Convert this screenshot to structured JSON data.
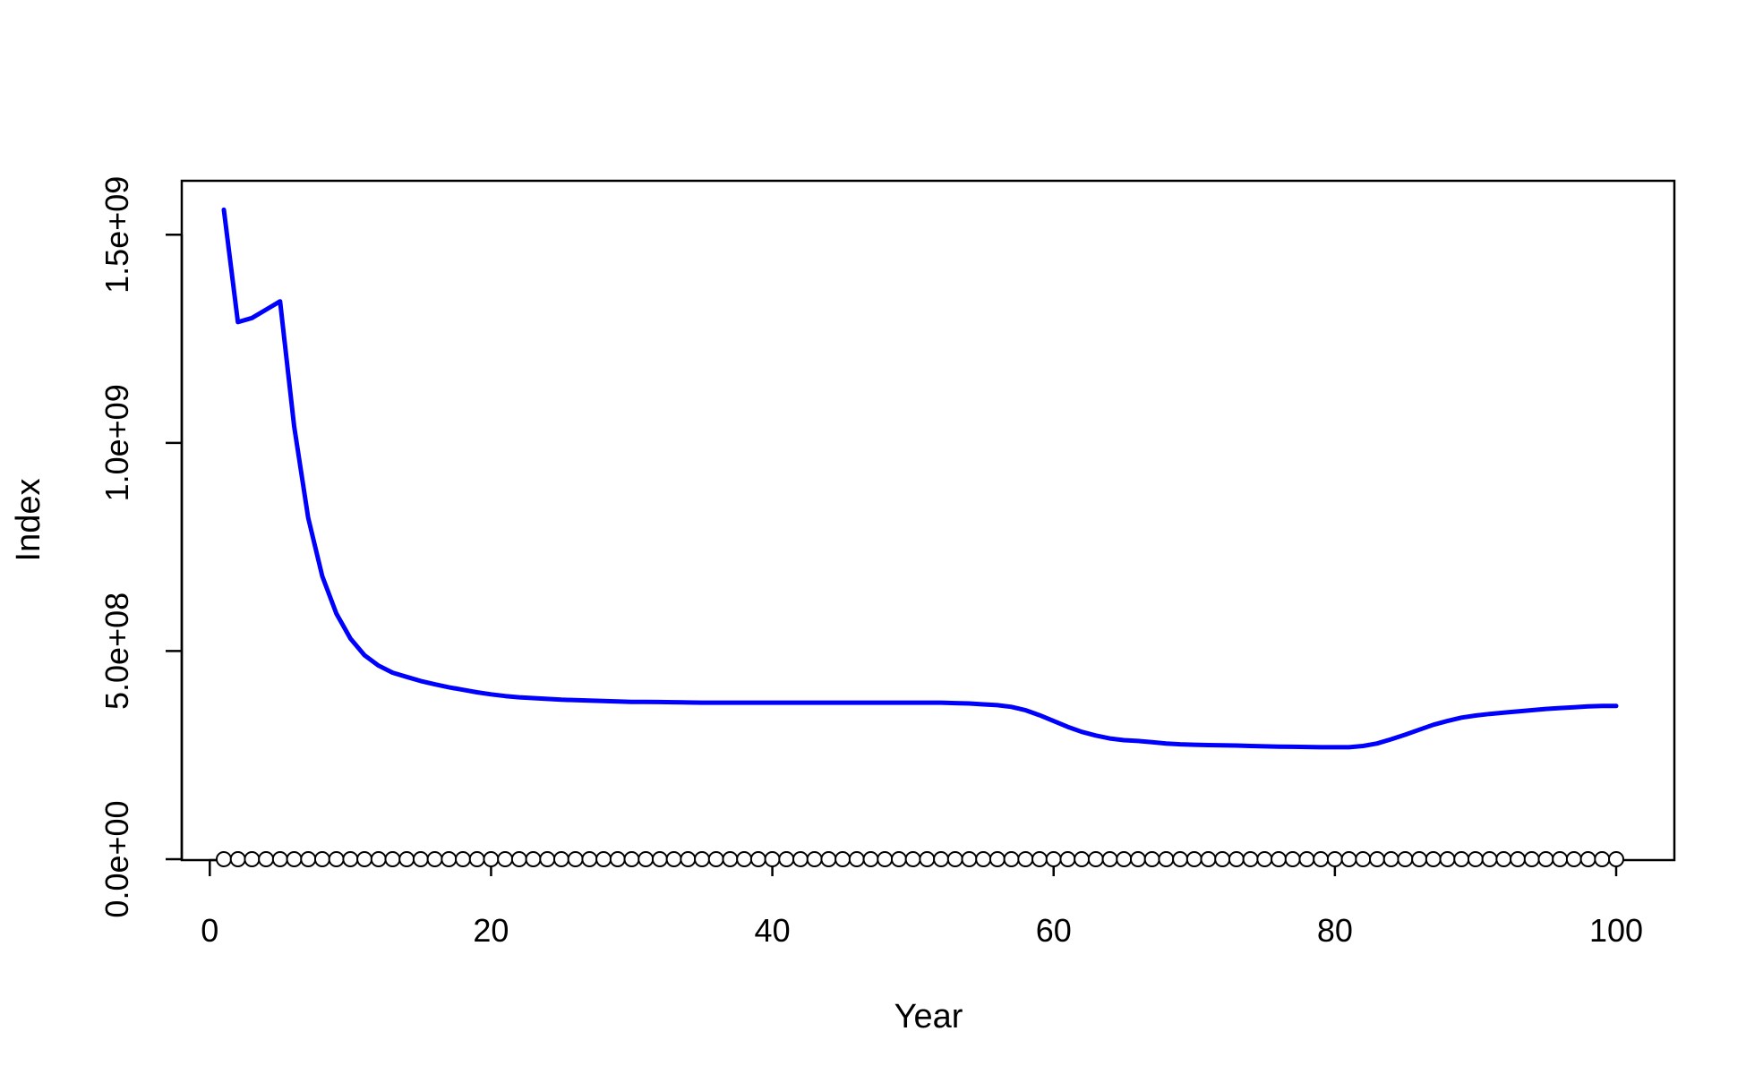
{
  "chart_data": {
    "type": "line",
    "title": "",
    "xlabel": "Year",
    "ylabel": "Index",
    "xlim": [
      1,
      100
    ],
    "ylim": [
      0,
      1550000000
    ],
    "xticks": [
      0,
      20,
      40,
      60,
      80,
      100
    ],
    "xtick_labels": [
      "0",
      "20",
      "40",
      "60",
      "80",
      "100"
    ],
    "yticks": [
      0,
      500000000,
      1000000000,
      1500000000
    ],
    "ytick_labels": [
      "0.0e+00",
      "5.0e+08",
      "1.0e+09",
      "1.5e+09"
    ],
    "grid": false,
    "legend": "none",
    "series": [
      {
        "color": "#0000ff",
        "style": "line",
        "x": [
          1,
          2,
          3,
          4,
          5,
          6,
          7,
          8,
          9,
          10,
          11,
          12,
          13,
          14,
          15,
          16,
          17,
          18,
          19,
          20,
          21,
          22,
          23,
          24,
          25,
          26,
          27,
          28,
          29,
          30,
          31,
          32,
          33,
          34,
          35,
          36,
          37,
          38,
          39,
          40,
          41,
          42,
          43,
          44,
          45,
          46,
          47,
          48,
          49,
          50,
          51,
          52,
          53,
          54,
          55,
          56,
          57,
          58,
          59,
          60,
          61,
          62,
          63,
          64,
          65,
          66,
          67,
          68,
          69,
          70,
          71,
          72,
          73,
          74,
          75,
          76,
          77,
          78,
          79,
          80,
          81,
          82,
          83,
          84,
          85,
          86,
          87,
          88,
          89,
          90,
          91,
          92,
          93,
          94,
          95,
          96,
          97,
          98,
          99,
          100
        ],
        "y": [
          1560000000,
          1290000000,
          1300000000,
          1320000000,
          1340000000,
          1040000000,
          820000000,
          680000000,
          590000000,
          530000000,
          490000000,
          465000000,
          448000000,
          438000000,
          428000000,
          420000000,
          413000000,
          407000000,
          401000000,
          396000000,
          392000000,
          389000000,
          387000000,
          385000000,
          383000000,
          382000000,
          381000000,
          380000000,
          379000000,
          378000000,
          378000000,
          377500000,
          377000000,
          376500000,
          376000000,
          376000000,
          376000000,
          376000000,
          376000000,
          376000000,
          376000000,
          376000000,
          376000000,
          376000000,
          376000000,
          376000000,
          376000000,
          376000000,
          376000000,
          376000000,
          376000000,
          376000000,
          375000000,
          374000000,
          372000000,
          370000000,
          366000000,
          358000000,
          346000000,
          332000000,
          318000000,
          306000000,
          297000000,
          290000000,
          286000000,
          284000000,
          281000000,
          278000000,
          276000000,
          275000000,
          274000000,
          273500000,
          273000000,
          272000000,
          271000000,
          270500000,
          270000000,
          269500000,
          269000000,
          269000000,
          269000000,
          272000000,
          278000000,
          288000000,
          299000000,
          311000000,
          323000000,
          332000000,
          340000000,
          345000000,
          349000000,
          352000000,
          355000000,
          358000000,
          361000000,
          363000000,
          365000000,
          367000000,
          368000000,
          368000000
        ]
      },
      {
        "color": "#000000",
        "style": "points",
        "x": [
          1,
          2,
          3,
          4,
          5,
          6,
          7,
          8,
          9,
          10,
          11,
          12,
          13,
          14,
          15,
          16,
          17,
          18,
          19,
          20,
          21,
          22,
          23,
          24,
          25,
          26,
          27,
          28,
          29,
          30,
          31,
          32,
          33,
          34,
          35,
          36,
          37,
          38,
          39,
          40,
          41,
          42,
          43,
          44,
          45,
          46,
          47,
          48,
          49,
          50,
          51,
          52,
          53,
          54,
          55,
          56,
          57,
          58,
          59,
          60,
          61,
          62,
          63,
          64,
          65,
          66,
          67,
          68,
          69,
          70,
          71,
          72,
          73,
          74,
          75,
          76,
          77,
          78,
          79,
          80,
          81,
          82,
          83,
          84,
          85,
          86,
          87,
          88,
          89,
          90,
          91,
          92,
          93,
          94,
          95,
          96,
          97,
          98,
          99,
          100
        ],
        "y": [
          0,
          0,
          0,
          0,
          0,
          0,
          0,
          0,
          0,
          0,
          0,
          0,
          0,
          0,
          0,
          0,
          0,
          0,
          0,
          0,
          0,
          0,
          0,
          0,
          0,
          0,
          0,
          0,
          0,
          0,
          0,
          0,
          0,
          0,
          0,
          0,
          0,
          0,
          0,
          0,
          0,
          0,
          0,
          0,
          0,
          0,
          0,
          0,
          0,
          0,
          0,
          0,
          0,
          0,
          0,
          0,
          0,
          0,
          0,
          0,
          0,
          0,
          0,
          0,
          0,
          0,
          0,
          0,
          0,
          0,
          0,
          0,
          0,
          0,
          0,
          0,
          0,
          0,
          0,
          0,
          0,
          0,
          0,
          0,
          0,
          0,
          0,
          0,
          0,
          0,
          0,
          0,
          0,
          0,
          0,
          0,
          0,
          0,
          0,
          0
        ]
      }
    ]
  }
}
